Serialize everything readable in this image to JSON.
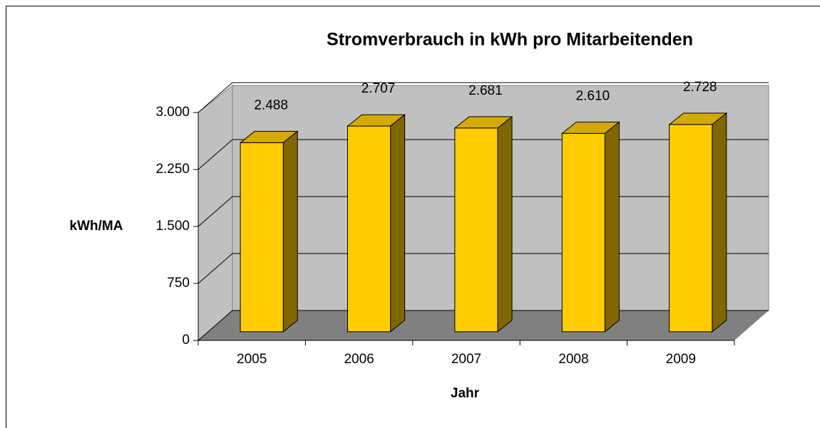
{
  "chart_data": {
    "type": "bar3d",
    "title": "Stromverbrauch in kWh pro Mitarbeitenden",
    "x_label": "Jahr",
    "y_label": "kWh/MA",
    "categories": [
      "2005",
      "2006",
      "2007",
      "2008",
      "2009"
    ],
    "values": [
      2488,
      2707,
      2681,
      2610,
      2728
    ],
    "value_labels": [
      "2.488",
      "2.707",
      "2.681",
      "2.610",
      "2.728"
    ],
    "color": "#ffcc00",
    "ylim": [
      0,
      3000
    ],
    "yticks": [
      0,
      750,
      {
        "value": 1500,
        "label": "1.500"
      },
      {
        "value": 2250,
        "label": "2.250"
      },
      {
        "value": 3000,
        "label": "3.000"
      }
    ],
    "grid": true
  }
}
